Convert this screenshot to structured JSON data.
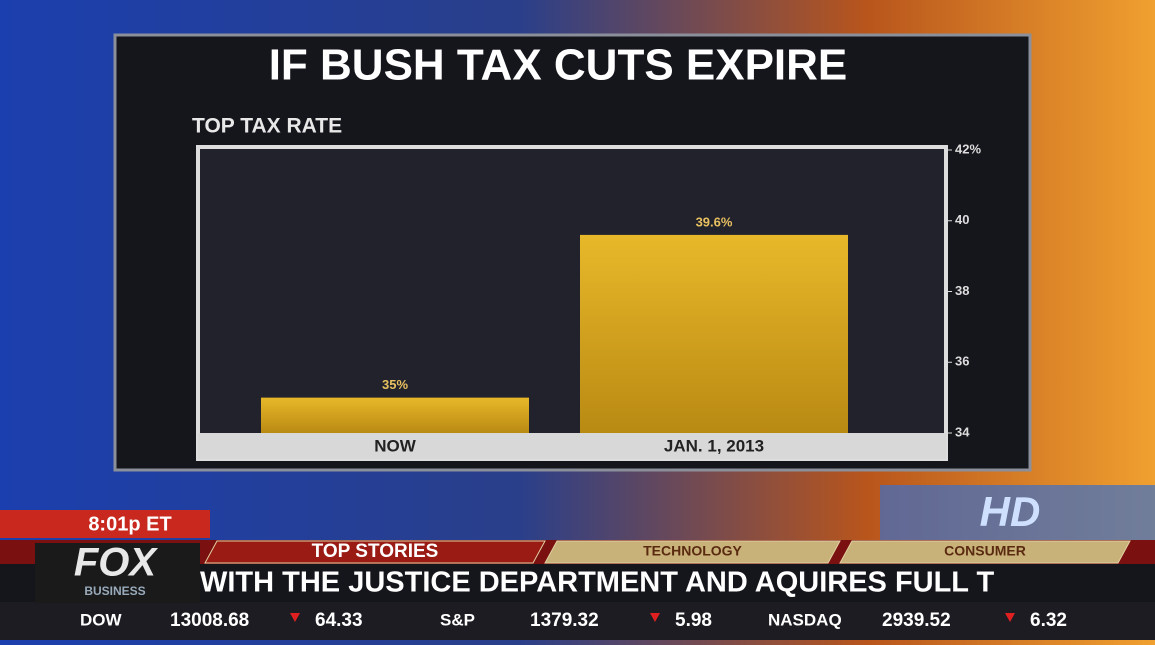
{
  "chart_data": {
    "type": "bar",
    "title": "IF BUSH TAX CUTS EXPIRE",
    "subtitle": "TOP TAX RATE",
    "categories": [
      "NOW",
      "JAN. 1, 2013"
    ],
    "values": [
      35,
      39.6
    ],
    "value_labels": [
      "35%",
      "39.6%"
    ],
    "color": "#d9a81e",
    "ylim": [
      34,
      42
    ],
    "yticks": [
      34,
      36,
      38,
      40,
      {
        "value": 42,
        "label": "42%"
      }
    ],
    "grid": false
  },
  "clock": "8:01p ET",
  "logo": {
    "name": "FOX",
    "sub": "BUSINESS",
    "badge": "HD"
  },
  "tabs": [
    "TOP STORIES",
    "TECHNOLOGY",
    "CONSUMER"
  ],
  "crawl": "WITH THE JUSTICE DEPARTMENT AND AQUIRES FULL T",
  "stocks": [
    {
      "name": "DOW",
      "value": "13008.68",
      "change": "64.33"
    },
    {
      "name": "S&P",
      "value": "1379.32",
      "change": "5.98"
    },
    {
      "name": "NASDAQ",
      "value": "2939.52",
      "change": "6.32"
    }
  ]
}
